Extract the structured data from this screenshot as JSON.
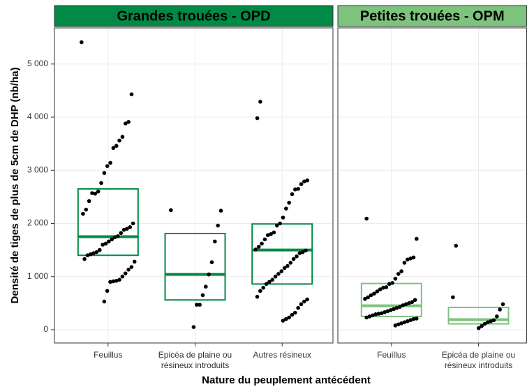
{
  "chart_data": {
    "type": "box",
    "ylabel": "Densité de tiges de plus de 5cm de DHP (nb/ha)",
    "xlabel": "Nature du peuplement antécédent",
    "ylim": [
      -250,
      5680
    ],
    "yticks": [
      0,
      {
        "value": 1000,
        "label": "1 000"
      },
      {
        "value": 2000,
        "label": "2 000"
      },
      {
        "value": 3000,
        "label": "3 000"
      },
      {
        "value": 4000,
        "label": "4 000"
      },
      {
        "value": 5000,
        "label": "5 000"
      }
    ],
    "grid": true,
    "point_color": "#000000",
    "panels": [
      {
        "title": "Grandes trouées - OPD",
        "color": "#008a45",
        "categories": [
          "Feuillus",
          "Epicéa de plaine ou résineux introduits",
          "Autres résineux"
        ],
        "boxes": [
          {
            "q1": 1400,
            "median": 1750,
            "q3": 2650
          },
          {
            "q1": 560,
            "median": 1040,
            "q3": 1810
          },
          {
            "q1": 860,
            "median": 1500,
            "q3": 1990
          }
        ],
        "points": [
          [
            5410,
            4430,
            3910,
            3880,
            3630,
            3560,
            3460,
            3420,
            3140,
            3080,
            2950,
            2760,
            2600,
            2560,
            2570,
            2420,
            2260,
            2180,
            2000,
            1930,
            1900,
            1880,
            1820,
            1760,
            1740,
            1700,
            1660,
            1620,
            1600,
            1500,
            1460,
            1440,
            1420,
            1400,
            1330,
            1280,
            1180,
            1130,
            1060,
            1000,
            940,
            920,
            910,
            900,
            730,
            530
          ],
          [
            2250,
            2240,
            1960,
            1660,
            1270,
            1040,
            810,
            650,
            470,
            470,
            50
          ],
          [
            4290,
            3980,
            2810,
            2790,
            2740,
            2650,
            2640,
            2550,
            2390,
            2280,
            2110,
            2000,
            1960,
            1830,
            1800,
            1780,
            1700,
            1620,
            1560,
            1510,
            1490,
            1460,
            1440,
            1380,
            1330,
            1260,
            1200,
            1160,
            1100,
            1050,
            1000,
            940,
            900,
            860,
            790,
            730,
            620,
            570,
            530,
            480,
            410,
            320,
            280,
            230,
            200,
            170
          ]
        ]
      },
      {
        "title": "Petites trouées - OPM",
        "color": "#7dc37d",
        "categories": [
          "Feuillus",
          "Epicéa de plaine ou résineux introduits"
        ],
        "boxes": [
          {
            "q1": 250,
            "median": 450,
            "q3": 870
          },
          {
            "q1": 110,
            "median": 190,
            "q3": 420
          }
        ],
        "points": [
          [
            2090,
            1710,
            1360,
            1340,
            1320,
            1260,
            1100,
            1050,
            960,
            880,
            860,
            800,
            790,
            760,
            720,
            680,
            650,
            610,
            580,
            560,
            520,
            500,
            480,
            460,
            430,
            410,
            390,
            370,
            350,
            330,
            310,
            300,
            290,
            270,
            250,
            230,
            210,
            200,
            180,
            160,
            140,
            120,
            100,
            80
          ],
          [
            1580,
            610,
            480,
            380,
            250,
            180,
            160,
            140,
            110,
            70,
            30
          ]
        ]
      }
    ]
  }
}
